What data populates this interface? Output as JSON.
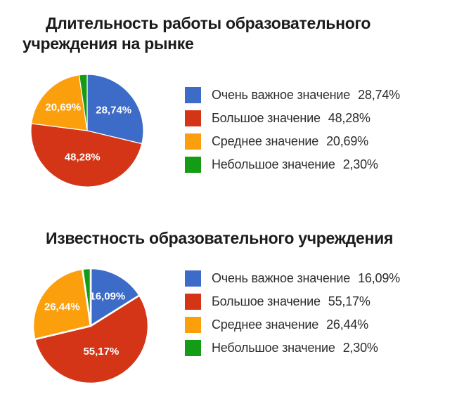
{
  "page": {
    "background": "#ffffff"
  },
  "colors": {
    "blue": "#3C6BC8",
    "red": "#D43517",
    "orange": "#FC9F0D",
    "green": "#149C14",
    "title_text": "#1d1b1a",
    "legend_text": "#2d2d2d",
    "pie_value_label": "#ffffff"
  },
  "chart_data": [
    {
      "type": "pie",
      "title": "Длительность работы образовательного учреждения на рынке",
      "legend_position": "right",
      "start_angle_deg": 0,
      "direction": "clockwise",
      "slices": [
        {
          "label": "Очень важное значение",
          "value": 28.74,
          "value_display": "28,74%",
          "color_name": "blue",
          "color": "#3C6BC8"
        },
        {
          "label": "Большое значение",
          "value": 48.28,
          "value_display": "48,28%",
          "color_name": "red",
          "color": "#D43517"
        },
        {
          "label": "Среднее значение",
          "value": 20.69,
          "value_display": "20,69%",
          "color_name": "orange",
          "color": "#FC9F0D"
        },
        {
          "label": "Небольшое значение",
          "value": 2.3,
          "value_display": "2,30%",
          "color_name": "green",
          "color": "#149C14"
        }
      ]
    },
    {
      "type": "pie",
      "title": "Известность образовательного учреждения",
      "legend_position": "right",
      "start_angle_deg": 0,
      "direction": "clockwise",
      "slices": [
        {
          "label": "Очень важное значение",
          "value": 16.09,
          "value_display": "16,09%",
          "color_name": "blue",
          "color": "#3C6BC8"
        },
        {
          "label": "Большое значение",
          "value": 55.17,
          "value_display": "55,17%",
          "color_name": "red",
          "color": "#D43517"
        },
        {
          "label": "Среднее значение",
          "value": 26.44,
          "value_display": "26,44%",
          "color_name": "orange",
          "color": "#FC9F0D"
        },
        {
          "label": "Небольшое значение",
          "value": 2.3,
          "value_display": "2,30%",
          "color_name": "green",
          "color": "#149C14"
        }
      ]
    }
  ]
}
